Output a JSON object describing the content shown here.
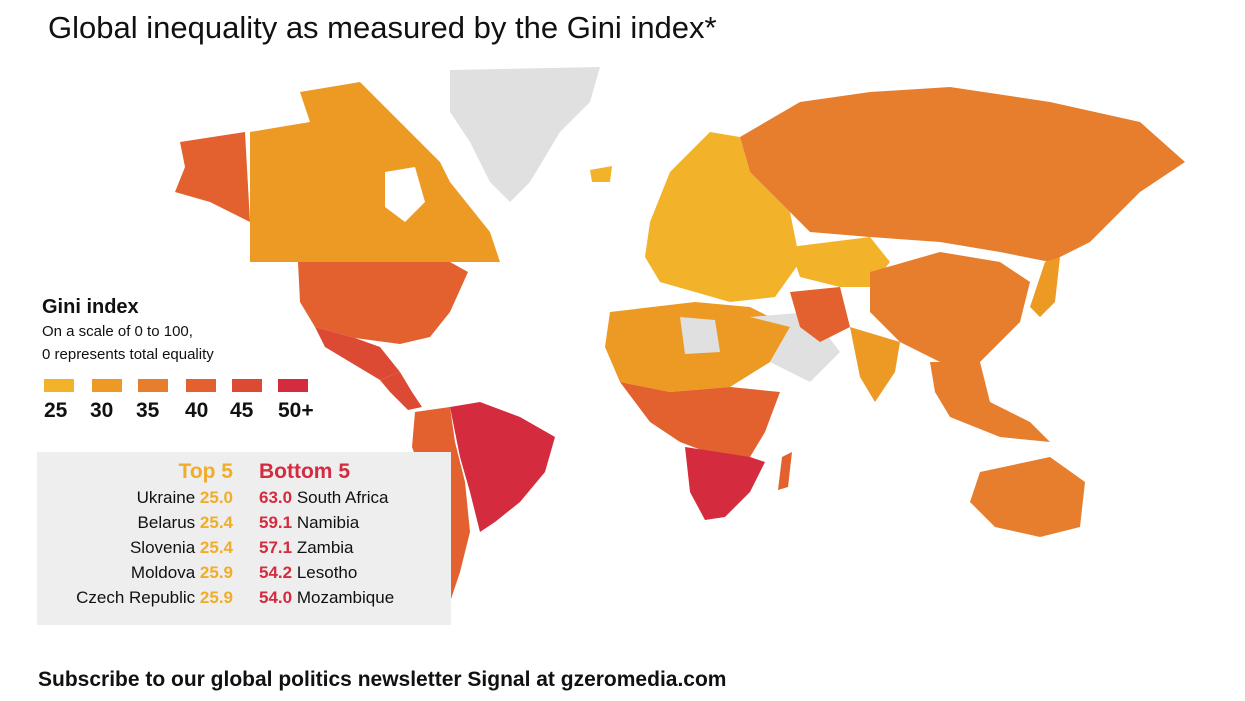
{
  "title": "Global inequality as measured by the Gini index*",
  "legend": {
    "title": "Gini index",
    "subtitle_line1": "On a scale of 0 to 100,",
    "subtitle_line2": "0 represents total equality",
    "bins": [
      {
        "label": "25",
        "color": "#f2b32a"
      },
      {
        "label": "30",
        "color": "#ec9a24"
      },
      {
        "label": "35",
        "color": "#e67e2d"
      },
      {
        "label": "40",
        "color": "#e2612e"
      },
      {
        "label": "45",
        "color": "#dd4a33"
      },
      {
        "label": "50+",
        "color": "#d42b3e"
      }
    ],
    "no_data_color": "#e0e0e0"
  },
  "rankings": {
    "top_label": "Top 5",
    "bottom_label": "Bottom 5",
    "top": [
      {
        "country": "Ukraine",
        "value": "25.0"
      },
      {
        "country": "Belarus",
        "value": "25.4"
      },
      {
        "country": "Slovenia",
        "value": "25.4"
      },
      {
        "country": "Moldova",
        "value": "25.9"
      },
      {
        "country": "Czech Republic",
        "value": "25.9"
      }
    ],
    "bottom": [
      {
        "value": "63.0",
        "country": "South Africa"
      },
      {
        "value": "59.1",
        "country": "Namibia"
      },
      {
        "value": "57.1",
        "country": "Zambia"
      },
      {
        "value": "54.2",
        "country": "Lesotho"
      },
      {
        "value": "54.0",
        "country": "Mozambique"
      }
    ]
  },
  "footer": "Subscribe to our global politics newsletter Signal at gzeromedia.com"
}
